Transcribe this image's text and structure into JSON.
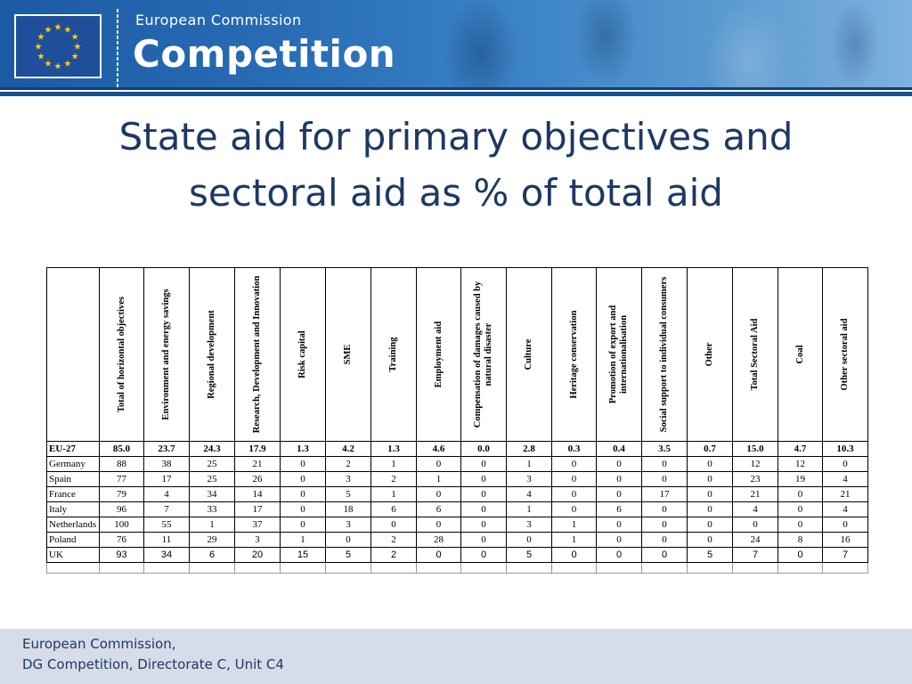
{
  "header": {
    "org_name": "European Commission",
    "dept_name": "Competition",
    "colors": {
      "banner": "#2a6fb8",
      "accent": "#ffcc00",
      "title": "#1d3864"
    },
    "flag_icon": "eu-flag-icon"
  },
  "slide": {
    "title_line1": "State aid for primary objectives and",
    "title_line2": "sectoral aid as % of total aid"
  },
  "table": {
    "columns": [
      "Total of horizontal objectives",
      "Environment and energy savings",
      "Regional development",
      "Research, Development and Innovation",
      "Risk capital",
      "SME",
      "Training",
      "Employment aid",
      "Compensation of damages caused by natural disaster",
      "Culture",
      "Heritage conservation",
      "Promotion of export and internationalisation",
      "Social support to individual consumers",
      "Other",
      "Total Sectoral Aid",
      "Coal",
      "Other sectoral aid"
    ],
    "rows": [
      {
        "country": "EU-27",
        "values": [
          "85.0",
          "23.7",
          "24.3",
          "17.9",
          "1.3",
          "4.2",
          "1.3",
          "4.6",
          "0.0",
          "2.8",
          "0.3",
          "0.4",
          "3.5",
          "0.7",
          "15.0",
          "4.7",
          "10.3"
        ]
      },
      {
        "country": "Germany",
        "values": [
          "88",
          "38",
          "25",
          "21",
          "0",
          "2",
          "1",
          "0",
          "0",
          "1",
          "0",
          "0",
          "0",
          "0",
          "12",
          "12",
          "0"
        ]
      },
      {
        "country": "Spain",
        "values": [
          "77",
          "17",
          "25",
          "26",
          "0",
          "3",
          "2",
          "1",
          "0",
          "3",
          "0",
          "0",
          "0",
          "0",
          "23",
          "19",
          "4"
        ]
      },
      {
        "country": "France",
        "values": [
          "79",
          "4",
          "34",
          "14",
          "0",
          "5",
          "1",
          "0",
          "0",
          "4",
          "0",
          "0",
          "17",
          "0",
          "21",
          "0",
          "21"
        ]
      },
      {
        "country": "Italy",
        "values": [
          "96",
          "7",
          "33",
          "17",
          "0",
          "18",
          "6",
          "6",
          "0",
          "1",
          "0",
          "6",
          "0",
          "0",
          "4",
          "0",
          "4"
        ]
      },
      {
        "country": "Netherlands",
        "values": [
          "100",
          "55",
          "1",
          "37",
          "0",
          "3",
          "0",
          "0",
          "0",
          "3",
          "1",
          "0",
          "0",
          "0",
          "0",
          "0",
          "0"
        ]
      },
      {
        "country": "Poland",
        "values": [
          "76",
          "11",
          "29",
          "3",
          "1",
          "0",
          "2",
          "28",
          "0",
          "0",
          "1",
          "0",
          "0",
          "0",
          "24",
          "8",
          "16"
        ]
      },
      {
        "country": "UK",
        "values": [
          "93",
          "34",
          "6",
          "20",
          "15",
          "5",
          "2",
          "0",
          "0",
          "5",
          "0",
          "0",
          "0",
          "5",
          "7",
          "0",
          "7"
        ]
      }
    ]
  },
  "footer": {
    "line1": "European Commission,",
    "line2": "DG Competition, Directorate C, Unit C4"
  }
}
